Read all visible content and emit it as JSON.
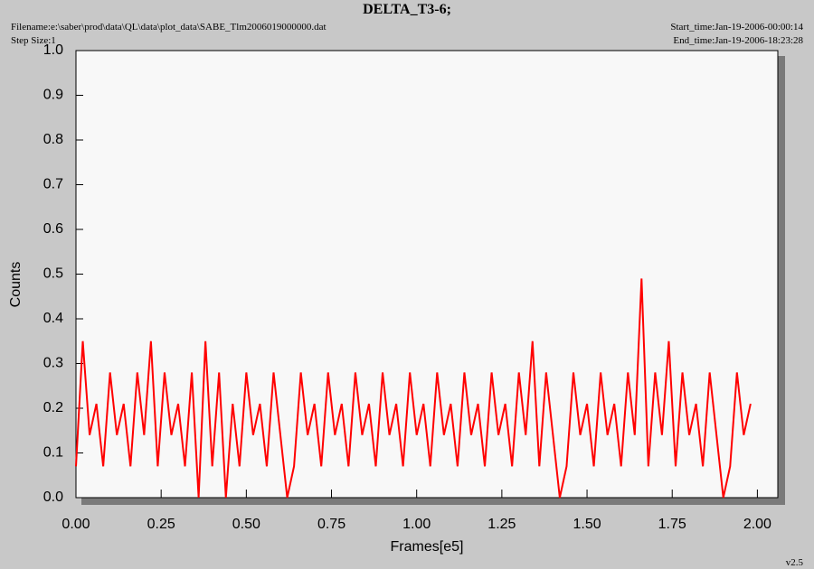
{
  "header": {
    "filename": "Filename:e:\\saber\\prod\\data\\QL\\data\\plot_data\\SABE_Tlm2006019000000.dat",
    "step_size": "Step Size:1",
    "start_time": "Start_time:Jan-19-2006-00:00:14",
    "end_time": "End_time:Jan-19-2006-18:23:28",
    "version": "v2.5"
  },
  "chart_data": {
    "type": "line",
    "title": "DELTA_T3-6;",
    "x_label": "Frames[e5]",
    "y_label": "Counts",
    "color": "#ff0000",
    "x": [
      0,
      0.02,
      0.04,
      0.06,
      0.08,
      0.1,
      0.12,
      0.14,
      0.16,
      0.18,
      0.2,
      0.22,
      0.24,
      0.26,
      0.28,
      0.3,
      0.32,
      0.34,
      0.36,
      0.38,
      0.4,
      0.42,
      0.44,
      0.46,
      0.48,
      0.5,
      0.52,
      0.54,
      0.56,
      0.58,
      0.6,
      0.62,
      0.64,
      0.66,
      0.68,
      0.7,
      0.72,
      0.74,
      0.76,
      0.78,
      0.8,
      0.82,
      0.84,
      0.86,
      0.88,
      0.9,
      0.92,
      0.94,
      0.96,
      0.98,
      1,
      1.02,
      1.04,
      1.06,
      1.08,
      1.1,
      1.12,
      1.14,
      1.16,
      1.18,
      1.2,
      1.22,
      1.24,
      1.26,
      1.28,
      1.3,
      1.32,
      1.34,
      1.36,
      1.38,
      1.4,
      1.42,
      1.44,
      1.46,
      1.48,
      1.5,
      1.52,
      1.54,
      1.56,
      1.58,
      1.6,
      1.62,
      1.64,
      1.66,
      1.68,
      1.7,
      1.72,
      1.74,
      1.76,
      1.78,
      1.8,
      1.82,
      1.84,
      1.86,
      1.88,
      1.9,
      1.92,
      1.94,
      1.96,
      1.98
    ],
    "values": [
      0.07,
      0.35,
      0.14,
      0.21,
      0.07,
      0.28,
      0.14,
      0.21,
      0.07,
      0.28,
      0.14,
      0.35,
      0.07,
      0.28,
      0.14,
      0.21,
      0.07,
      0.28,
      0,
      0.35,
      0.07,
      0.28,
      0,
      0.21,
      0.07,
      0.28,
      0.14,
      0.21,
      0.07,
      0.28,
      0.14,
      0,
      0.07,
      0.28,
      0.14,
      0.21,
      0.07,
      0.28,
      0.14,
      0.21,
      0.07,
      0.28,
      0.14,
      0.21,
      0.07,
      0.28,
      0.14,
      0.21,
      0.07,
      0.28,
      0.14,
      0.21,
      0.07,
      0.28,
      0.14,
      0.21,
      0.07,
      0.28,
      0.14,
      0.21,
      0.07,
      0.28,
      0.14,
      0.21,
      0.07,
      0.28,
      0.14,
      0.35,
      0.07,
      0.28,
      0.14,
      0,
      0.07,
      0.28,
      0.14,
      0.21,
      0.07,
      0.28,
      0.14,
      0.21,
      0.07,
      0.28,
      0.14,
      0.49,
      0.07,
      0.28,
      0.14,
      0.35,
      0.07,
      0.28,
      0.14,
      0.21,
      0.07,
      0.28,
      0.14,
      0,
      0.07,
      0.28,
      0.14,
      0.21
    ],
    "xlim": [
      0,
      2.06
    ],
    "ylim": [
      0,
      1
    ],
    "xticks": [
      {
        "value": 0,
        "label": "0.00"
      },
      {
        "value": 0.25,
        "label": "0.25"
      },
      {
        "value": 0.5,
        "label": "0.50"
      },
      {
        "value": 0.75,
        "label": "0.75"
      },
      {
        "value": 1,
        "label": "1.00"
      },
      {
        "value": 1.25,
        "label": "1.25"
      },
      {
        "value": 1.5,
        "label": "1.50"
      },
      {
        "value": 1.75,
        "label": "1.75"
      },
      {
        "value": 2,
        "label": "2.00"
      }
    ],
    "yticks": [
      {
        "value": 0,
        "label": "0.0"
      },
      0.1,
      0.2,
      0.3,
      0.4,
      0.5,
      0.6,
      0.7,
      0.8,
      0.9,
      {
        "value": 1,
        "label": "1.0"
      }
    ]
  }
}
